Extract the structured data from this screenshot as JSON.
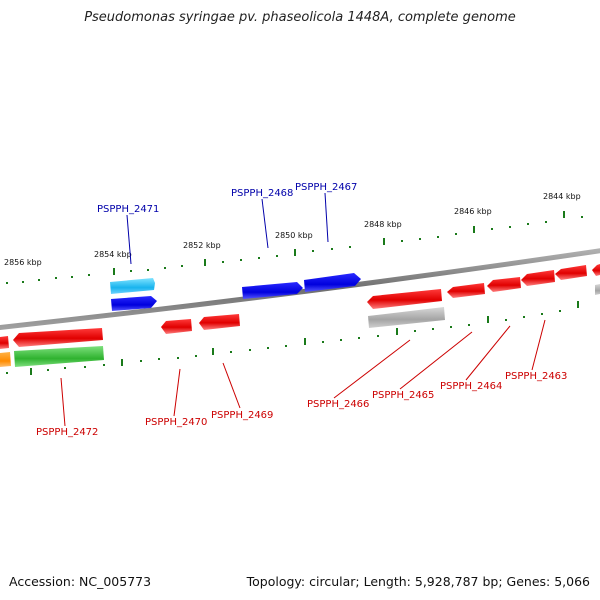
{
  "title": "Pseudomonas syringae pv. phaseolicola 1448A, complete genome",
  "accession": "Accession: NC_005773",
  "summary": "Topology: circular; Length: 5,928,787 bp; Genes: 5,066",
  "colors": {
    "forward_label": "#0000aa",
    "reverse_label": "#cc0000",
    "tick": "#1a7a1a",
    "backbone": "#808080"
  },
  "kbp_labels": [
    "2856 kbp",
    "2854 kbp",
    "2852 kbp",
    "2850 kbp",
    "2848 kbp",
    "2846 kbp",
    "2844 kbp"
  ],
  "forward_genes": [
    "PSPPH_2471",
    "PSPPH_2468",
    "PSPPH_2467"
  ],
  "reverse_genes": [
    "PSPPH_2472",
    "PSPPH_2470",
    "PSPPH_2469",
    "PSPPH_2466",
    "PSPPH_2465",
    "PSPPH_2464",
    "PSPPH_2463"
  ]
}
